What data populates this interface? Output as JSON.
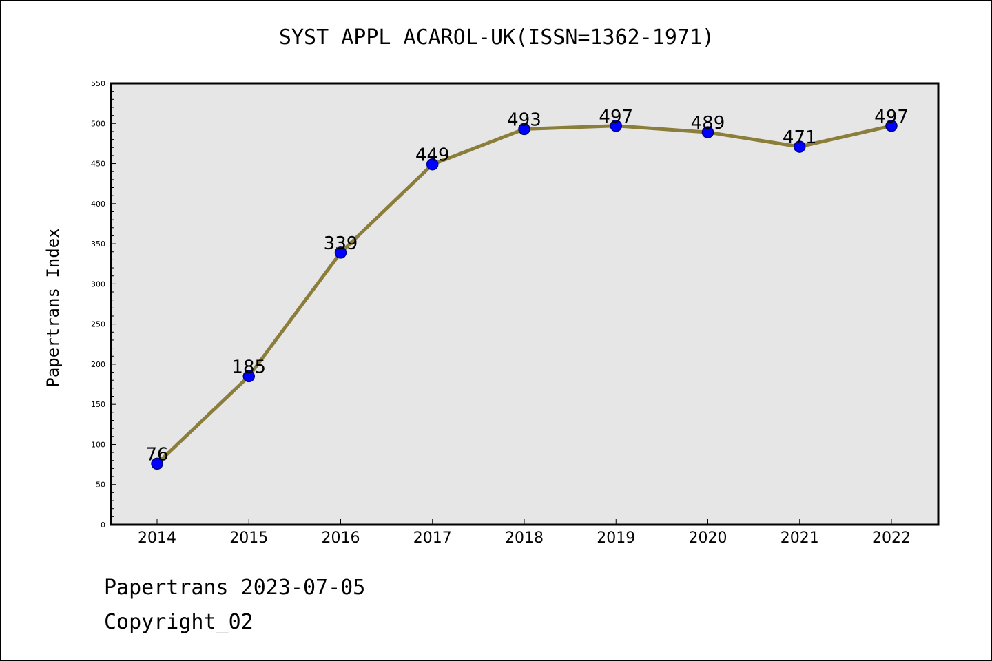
{
  "chart_data": {
    "type": "line",
    "title": "SYST APPL ACAROL-UK(ISSN=1362-1971)",
    "xlabel": "",
    "ylabel": "Papertrans Index",
    "categories": [
      "2014",
      "2015",
      "2016",
      "2017",
      "2018",
      "2019",
      "2020",
      "2021",
      "2022"
    ],
    "series": [
      {
        "values": [
          76,
          185,
          339,
          449,
          493,
          497,
          489,
          471,
          497
        ]
      }
    ],
    "data_labels": [
      "76",
      "185",
      "339",
      "449",
      "493",
      "497",
      "489",
      "471",
      "497"
    ],
    "ylim": [
      0,
      550
    ],
    "yticks": [
      "0",
      "50",
      "100",
      "150",
      "200",
      "250",
      "300",
      "350",
      "400",
      "450",
      "500",
      "550"
    ],
    "grid": false,
    "legend": "none",
    "colors": {
      "line": "#8b7d3a",
      "marker_fill": "#0000ff",
      "marker_edge": "#000080",
      "plot_background": "#e6e6e6"
    }
  },
  "footer": {
    "date_line": "Papertrans 2023-07-05",
    "copyright_line": "Copyright_02"
  }
}
